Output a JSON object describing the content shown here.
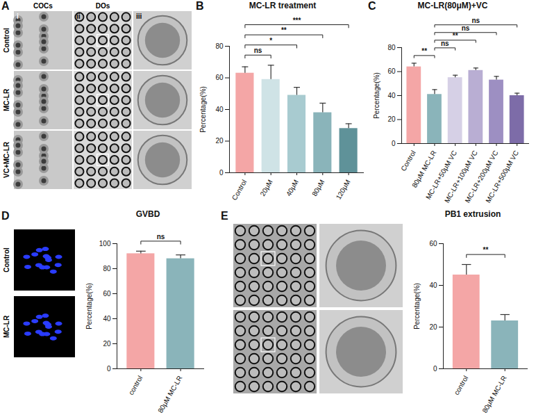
{
  "figure": {
    "panel_A": {
      "label": "A",
      "columns": [
        "COCs",
        "DOs"
      ],
      "subpanels": [
        "i",
        "ii",
        "iii"
      ],
      "rows": [
        "Control",
        "MC-LR",
        "VC+MC-LR"
      ]
    },
    "panel_D_image_rows": [
      "Control",
      "MC-LR"
    ]
  },
  "chart_data": [
    {
      "panel": "B",
      "type": "bar",
      "title": "MC-LR treatment",
      "y_label": "Percentage(%)",
      "categories": [
        "Control",
        "20μM",
        "40μM",
        "80μM",
        "120μM"
      ],
      "values": [
        63,
        59,
        49,
        38,
        28
      ],
      "error": [
        4,
        9,
        5,
        6,
        3
      ],
      "colors": [
        "#f4a6a6",
        "#cfe3e6",
        "#a8cbd0",
        "#8ab4ba",
        "#5f9299"
      ],
      "ylim": [
        0,
        80
      ],
      "yticks": [
        0,
        20,
        40,
        60,
        80
      ],
      "comparisons": [
        {
          "from": "Control",
          "to": "20μM",
          "label": "ns"
        },
        {
          "from": "Control",
          "to": "40μM",
          "label": "*"
        },
        {
          "from": "Control",
          "to": "80μM",
          "label": "**"
        },
        {
          "from": "Control",
          "to": "120μM",
          "label": "***"
        }
      ]
    },
    {
      "panel": "C",
      "type": "bar",
      "title": "MC-LR(80μM)+VC",
      "y_label": "Percentage(%)",
      "categories": [
        "Control",
        "80μM MC-LR",
        "MC-LR+50μM VC",
        "MC-LR+100μM VC",
        "MC-LR+200μM VC",
        "MC-LR+500μM VC"
      ],
      "values": [
        64,
        41,
        55,
        61,
        53,
        40
      ],
      "error": [
        3,
        4,
        2,
        2,
        3,
        2
      ],
      "colors": [
        "#f4a6a6",
        "#8ab4ba",
        "#d6d0e6",
        "#b9aed3",
        "#9d8fc2",
        "#7d6ca8"
      ],
      "ylim": [
        0,
        80
      ],
      "yticks": [
        0,
        20,
        40,
        60,
        80
      ],
      "comparisons": [
        {
          "from": "Control",
          "to": "80μM MC-LR",
          "label": "**"
        },
        {
          "from": "80μM MC-LR",
          "to": "MC-LR+50μM VC",
          "label": "ns"
        },
        {
          "from": "80μM MC-LR",
          "to": "MC-LR+100μM VC",
          "label": "**"
        },
        {
          "from": "80μM MC-LR",
          "to": "MC-LR+200μM VC",
          "label": "ns"
        },
        {
          "from": "80μM MC-LR",
          "to": "MC-LR+500μM VC",
          "label": "ns"
        }
      ]
    },
    {
      "panel": "D",
      "type": "bar",
      "title": "GVBD",
      "y_label": "Percentage(%)",
      "categories": [
        "control",
        "80μM MC-LR"
      ],
      "values": [
        92,
        88
      ],
      "error": [
        2,
        3
      ],
      "colors": [
        "#f4a6a6",
        "#8ab4ba"
      ],
      "ylim": [
        0,
        100
      ],
      "yticks": [
        0,
        20,
        40,
        60,
        80,
        100
      ],
      "comparisons": [
        {
          "from": "control",
          "to": "80μM MC-LR",
          "label": "ns"
        }
      ]
    },
    {
      "panel": "E",
      "type": "bar",
      "title": "PB1 extrusion",
      "y_label": "Percentage(%)",
      "categories": [
        "control",
        "80μM MC-LR"
      ],
      "values": [
        45,
        23
      ],
      "error": [
        5,
        3
      ],
      "colors": [
        "#f4a6a6",
        "#8ab4ba"
      ],
      "ylim": [
        0,
        60
      ],
      "yticks": [
        0,
        20,
        40,
        60
      ],
      "comparisons": [
        {
          "from": "control",
          "to": "80μM MC-LR",
          "label": "**"
        }
      ]
    }
  ]
}
